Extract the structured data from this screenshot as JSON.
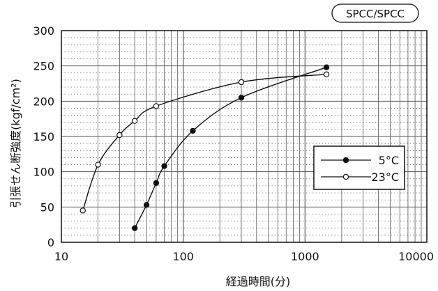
{
  "chart_data": {
    "type": "line",
    "badge": "SPCC/SPCC",
    "xlabel": "経過時間(分)",
    "ylabel": "引張せん断強度(kgf/cm²)",
    "x_scale": "log",
    "xlim": [
      10,
      10000
    ],
    "ylim": [
      0,
      300
    ],
    "x_ticks": [
      10,
      100,
      1000,
      10000
    ],
    "x_tick_labels": [
      "10",
      "100",
      "1000",
      "10000"
    ],
    "y_ticks": [
      0,
      50,
      100,
      150,
      200,
      250,
      300
    ],
    "y_tick_labels": [
      "0",
      "50",
      "100",
      "150",
      "200",
      "250",
      "300"
    ],
    "grid": true,
    "legend_position": "right-middle",
    "series": [
      {
        "name": "5°C",
        "marker": "filled-circle",
        "points": [
          [
            40,
            20
          ],
          [
            50,
            53
          ],
          [
            60,
            84
          ],
          [
            70,
            108
          ],
          [
            120,
            158
          ],
          [
            300,
            205
          ],
          [
            1500,
            248
          ]
        ]
      },
      {
        "name": "23°C",
        "marker": "open-circle",
        "points": [
          [
            15,
            45
          ],
          [
            20,
            110
          ],
          [
            30,
            152
          ],
          [
            40,
            172
          ],
          [
            60,
            193
          ],
          [
            300,
            227
          ],
          [
            1500,
            238
          ]
        ]
      }
    ]
  },
  "colors": {
    "line": "#111111",
    "background": "#ffffff",
    "grid": "#555555"
  }
}
